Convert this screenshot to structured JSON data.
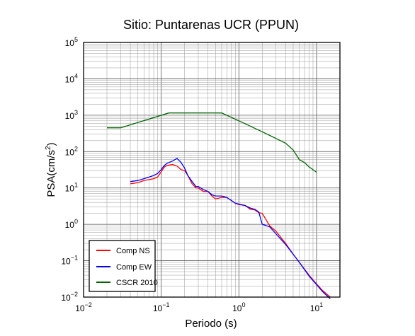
{
  "chart_data": {
    "type": "line",
    "title": "Sitio: Puntarenas UCR (PPUN)",
    "xlabel": "Periodo (s)",
    "ylabel_base": "PSA(cm/s",
    "ylabel_sup": "2",
    "ylabel_end": ")",
    "xscale": "log",
    "yscale": "log",
    "xlim": [
      0.01,
      20
    ],
    "ylim": [
      0.01,
      100000
    ],
    "grid": true,
    "legend_position": "bottom-left",
    "x_ticks": [
      {
        "base": "10",
        "exp": "−2"
      },
      {
        "base": "10",
        "exp": "−1"
      },
      {
        "base": "10",
        "exp": "0"
      },
      {
        "base": "10",
        "exp": "1"
      }
    ],
    "y_ticks": [
      {
        "base": "10",
        "exp": "−2"
      },
      {
        "base": "10",
        "exp": "−1"
      },
      {
        "base": "10",
        "exp": "0"
      },
      {
        "base": "10",
        "exp": "1"
      },
      {
        "base": "10",
        "exp": "2"
      },
      {
        "base": "10",
        "exp": "3"
      },
      {
        "base": "10",
        "exp": "4"
      },
      {
        "base": "10",
        "exp": "5"
      }
    ],
    "series": [
      {
        "name": "Comp NS",
        "color": "#ff0000",
        "x": [
          0.04,
          0.05,
          0.06,
          0.07,
          0.08,
          0.09,
          0.1,
          0.11,
          0.12,
          0.14,
          0.16,
          0.18,
          0.2,
          0.22,
          0.25,
          0.28,
          0.3,
          0.35,
          0.4,
          0.45,
          0.5,
          0.6,
          0.7,
          0.8,
          0.9,
          1.0,
          1.2,
          1.4,
          1.6,
          1.8,
          2.0,
          2.5,
          3.0,
          4.0,
          5.0,
          6.0,
          8.0,
          10.0,
          12.0,
          15.0
        ],
        "y": [
          13,
          14,
          16,
          17,
          18,
          20,
          28,
          38,
          42,
          44,
          40,
          32,
          30,
          22,
          13,
          10,
          10,
          8,
          8,
          6,
          5,
          5.5,
          5.5,
          4.5,
          3.8,
          3.5,
          3.3,
          2.6,
          2.5,
          2.1,
          2.0,
          0.9,
          0.65,
          0.3,
          0.15,
          0.09,
          0.04,
          0.023,
          0.015,
          0.01
        ]
      },
      {
        "name": "Comp EW",
        "color": "#0000ff",
        "x": [
          0.04,
          0.05,
          0.06,
          0.07,
          0.08,
          0.09,
          0.1,
          0.11,
          0.12,
          0.14,
          0.16,
          0.18,
          0.2,
          0.22,
          0.25,
          0.28,
          0.3,
          0.35,
          0.4,
          0.45,
          0.5,
          0.6,
          0.7,
          0.8,
          0.9,
          1.0,
          1.2,
          1.4,
          1.6,
          1.8,
          2.0,
          2.5,
          3.0,
          4.0,
          5.0,
          6.0,
          8.0,
          10.0,
          12.0,
          15.0
        ],
        "y": [
          15,
          16,
          18,
          20,
          22,
          25,
          32,
          42,
          48,
          55,
          65,
          50,
          35,
          22,
          15,
          11,
          11,
          9,
          8,
          6.5,
          6,
          6,
          5.5,
          4.5,
          3.8,
          3.6,
          3.3,
          2.8,
          2.6,
          2.2,
          1.0,
          0.85,
          0.55,
          0.28,
          0.15,
          0.09,
          0.038,
          0.022,
          0.014,
          0.009
        ]
      },
      {
        "name": "CSCR 2010",
        "color": "#006400",
        "x": [
          0.02,
          0.03,
          0.125,
          0.6,
          1.0,
          2.0,
          3.0,
          4.0,
          5.0,
          6.0,
          7.0,
          8.0,
          10.0
        ],
        "y": [
          450,
          450,
          1150,
          1150,
          700,
          350,
          230,
          170,
          110,
          60,
          50,
          38,
          27
        ]
      }
    ]
  }
}
